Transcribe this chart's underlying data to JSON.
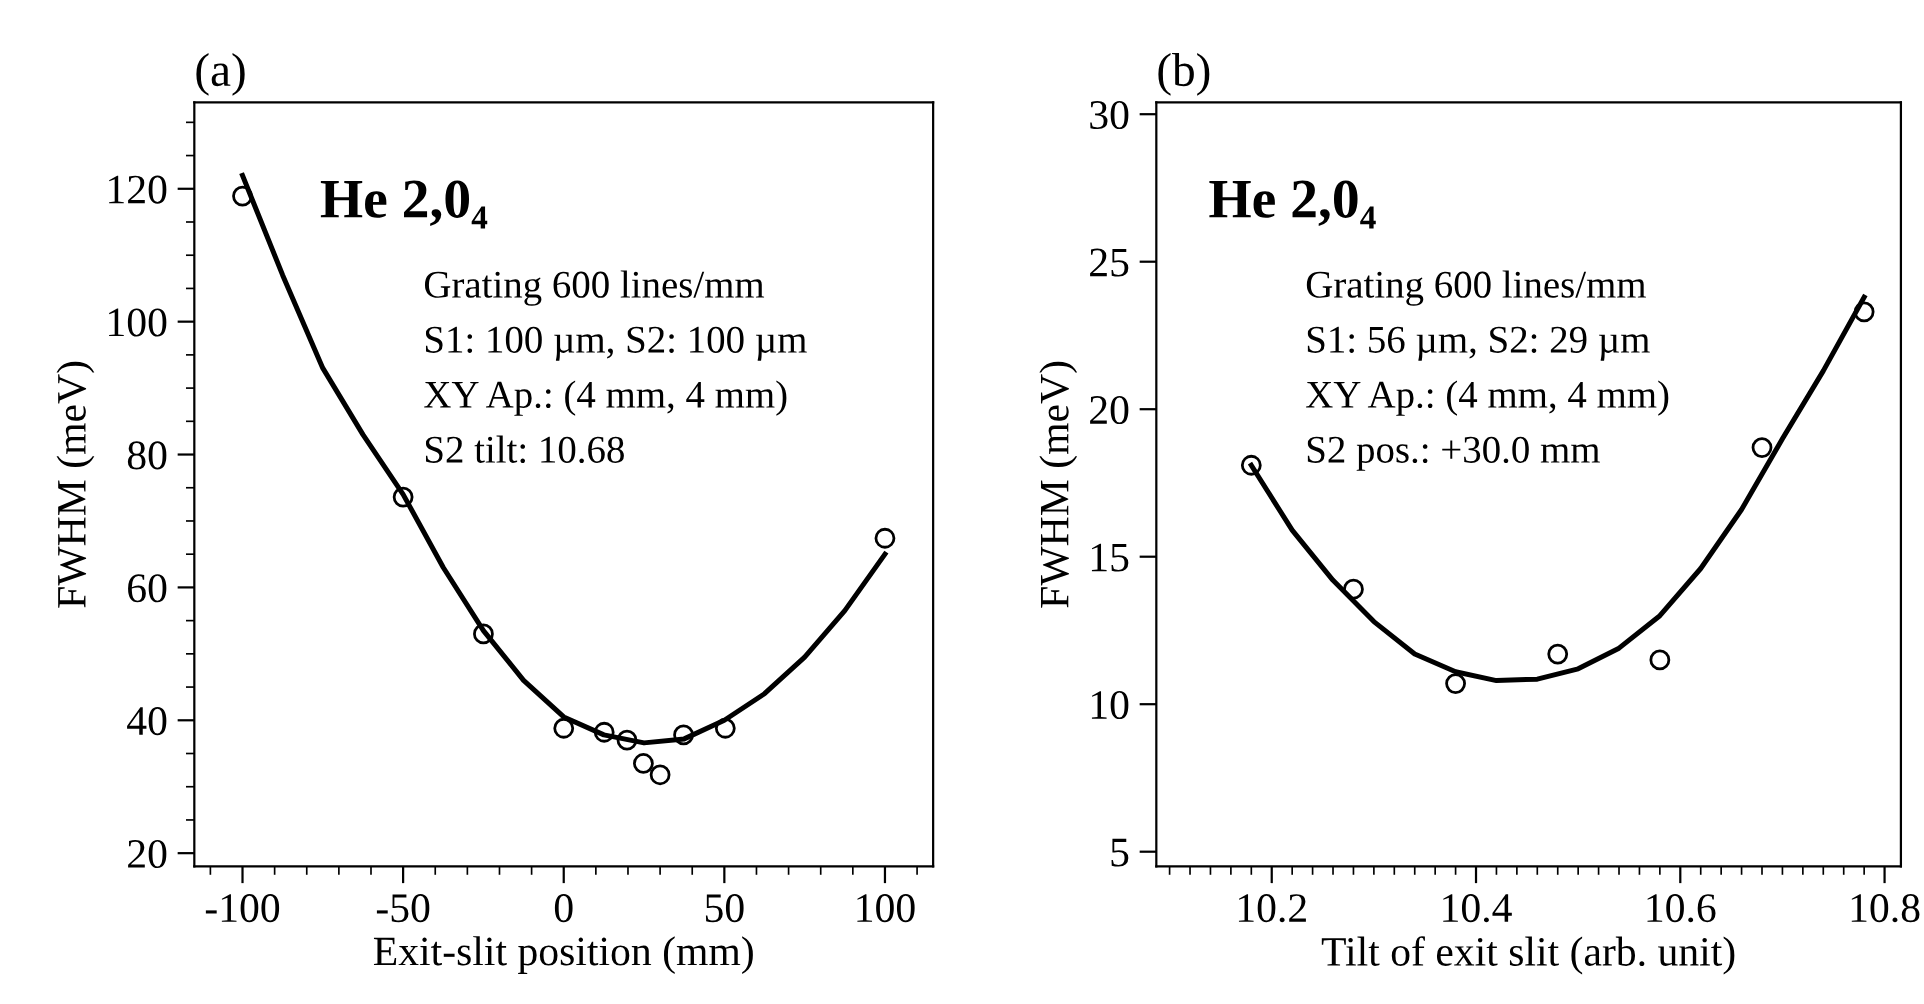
{
  "chart_data": [
    {
      "type": "scatter",
      "title": "(a)",
      "xlabel": "Exit-slit position (mm)",
      "ylabel": "FWHM (meV)",
      "xlim": [
        -115,
        115
      ],
      "ylim": [
        18,
        133
      ],
      "xticks": [
        {
          "value": -110,
          "label": null
        },
        -100,
        {
          "value": -90,
          "label": null
        },
        {
          "value": -80,
          "label": null
        },
        {
          "value": -70,
          "label": null
        },
        {
          "value": -60,
          "label": null
        },
        -50,
        {
          "value": -40,
          "label": null
        },
        {
          "value": -30,
          "label": null
        },
        {
          "value": -20,
          "label": null
        },
        {
          "value": -10,
          "label": null
        },
        0,
        {
          "value": 10,
          "label": null
        },
        {
          "value": 20,
          "label": null
        },
        {
          "value": 30,
          "label": null
        },
        {
          "value": 40,
          "label": null
        },
        50,
        {
          "value": 60,
          "label": null
        },
        {
          "value": 70,
          "label": null
        },
        {
          "value": 80,
          "label": null
        },
        {
          "value": 90,
          "label": null
        },
        100,
        {
          "value": 110,
          "label": null
        }
      ],
      "yticks": [
        20,
        {
          "value": 25,
          "label": null
        },
        {
          "value": 30,
          "label": null
        },
        {
          "value": 35,
          "label": null
        },
        40,
        {
          "value": 45,
          "label": null
        },
        {
          "value": 50,
          "label": null
        },
        {
          "value": 55,
          "label": null
        },
        60,
        {
          "value": 65,
          "label": null
        },
        {
          "value": 70,
          "label": null
        },
        {
          "value": 75,
          "label": null
        },
        80,
        {
          "value": 85,
          "label": null
        },
        {
          "value": 90,
          "label": null
        },
        {
          "value": 95,
          "label": null
        },
        100,
        {
          "value": 105,
          "label": null
        },
        {
          "value": 110,
          "label": null
        },
        {
          "value": 115,
          "label": null
        },
        120,
        {
          "value": 125,
          "label": null
        },
        {
          "value": 130,
          "label": null
        }
      ],
      "grid": false,
      "legend": false,
      "annotations": [
        "He 2,0₄",
        "Grating 600 lines/mm",
        "S1: 100 µm, S2: 100 µm",
        "XY Ap.: (4 mm, 4 mm)",
        "S2 tilt: 10.68"
      ],
      "series": [
        {
          "marker": "circle",
          "color": "#000000",
          "x": [
            -100,
            -50,
            -25,
            0,
            12.6,
            19.7,
            24.8,
            30,
            37.3,
            50.3,
            100
          ],
          "values": [
            118.9,
            73.6,
            53,
            38.8,
            38.2,
            37,
            33.5,
            31.8,
            37.8,
            38.8,
            67.4
          ]
        },
        {
          "type": "line",
          "marker": "none",
          "line_style": "solid",
          "color": "#000000",
          "x": [
            -100,
            -87.5,
            -75,
            -62.5,
            -50,
            -37.5,
            -25,
            -12.5,
            0,
            12.5,
            25,
            37.5,
            50,
            62.5,
            75,
            87.5,
            100
          ],
          "values": [
            122,
            107,
            93,
            83,
            74,
            63,
            53.5,
            46,
            40.5,
            37.8,
            36.6,
            37.2,
            40,
            44,
            49.5,
            56.5,
            65
          ]
        }
      ]
    },
    {
      "type": "scatter",
      "title": "(b)",
      "xlabel": "Tilt of exit slit (arb. unit)",
      "ylabel": "FWHM (meV)",
      "xlim": [
        10.087,
        10.816
      ],
      "ylim": [
        4.5,
        30.4
      ],
      "xticks": [
        {
          "value": 10.1,
          "label": null
        },
        {
          "value": 10.12,
          "label": null
        },
        {
          "value": 10.14,
          "label": null
        },
        {
          "value": 10.16,
          "label": null
        },
        {
          "value": 10.18,
          "label": null
        },
        10.2,
        {
          "value": 10.22,
          "label": null
        },
        {
          "value": 10.24,
          "label": null
        },
        {
          "value": 10.26,
          "label": null
        },
        {
          "value": 10.28,
          "label": null
        },
        {
          "value": 10.3,
          "label": null
        },
        {
          "value": 10.32,
          "label": null
        },
        {
          "value": 10.34,
          "label": null
        },
        {
          "value": 10.36,
          "label": null
        },
        {
          "value": 10.38,
          "label": null
        },
        10.4,
        {
          "value": 10.42,
          "label": null
        },
        {
          "value": 10.44,
          "label": null
        },
        {
          "value": 10.46,
          "label": null
        },
        {
          "value": 10.48,
          "label": null
        },
        {
          "value": 10.5,
          "label": null
        },
        {
          "value": 10.52,
          "label": null
        },
        {
          "value": 10.54,
          "label": null
        },
        {
          "value": 10.56,
          "label": null
        },
        {
          "value": 10.58,
          "label": null
        },
        10.6,
        {
          "value": 10.62,
          "label": null
        },
        {
          "value": 10.64,
          "label": null
        },
        {
          "value": 10.66,
          "label": null
        },
        {
          "value": 10.68,
          "label": null
        },
        {
          "value": 10.7,
          "label": null
        },
        {
          "value": 10.72,
          "label": null
        },
        {
          "value": 10.74,
          "label": null
        },
        {
          "value": 10.76,
          "label": null
        },
        {
          "value": 10.78,
          "label": null
        },
        10.8
      ],
      "yticks": [
        5,
        10,
        15,
        20,
        25,
        30
      ],
      "grid": false,
      "legend": false,
      "annotations": [
        "He 2,0₄",
        "Grating 600 lines/mm",
        "S1: 56 µm, S2: 29 µm",
        "XY Ap.: (4 mm, 4 mm)",
        "S2 pos.: +30.0 mm"
      ],
      "series": [
        {
          "marker": "circle",
          "color": "#000000",
          "x": [
            10.18,
            10.28,
            10.38,
            10.48,
            10.58,
            10.68,
            10.78
          ],
          "values": [
            18.1,
            13.9,
            10.7,
            11.7,
            11.5,
            18.7,
            23.3
          ]
        },
        {
          "type": "line",
          "marker": "none",
          "line_style": "solid",
          "color": "#000000",
          "x": [
            10.18,
            10.22,
            10.26,
            10.3,
            10.34,
            10.38,
            10.42,
            10.46,
            10.5,
            10.54,
            10.58,
            10.62,
            10.66,
            10.7,
            10.74,
            10.78
          ],
          "values": [
            18.1,
            15.9,
            14.2,
            12.8,
            11.7,
            11.1,
            10.8,
            10.85,
            11.2,
            11.9,
            13,
            14.6,
            16.6,
            19,
            21.3,
            23.8
          ]
        }
      ]
    }
  ]
}
